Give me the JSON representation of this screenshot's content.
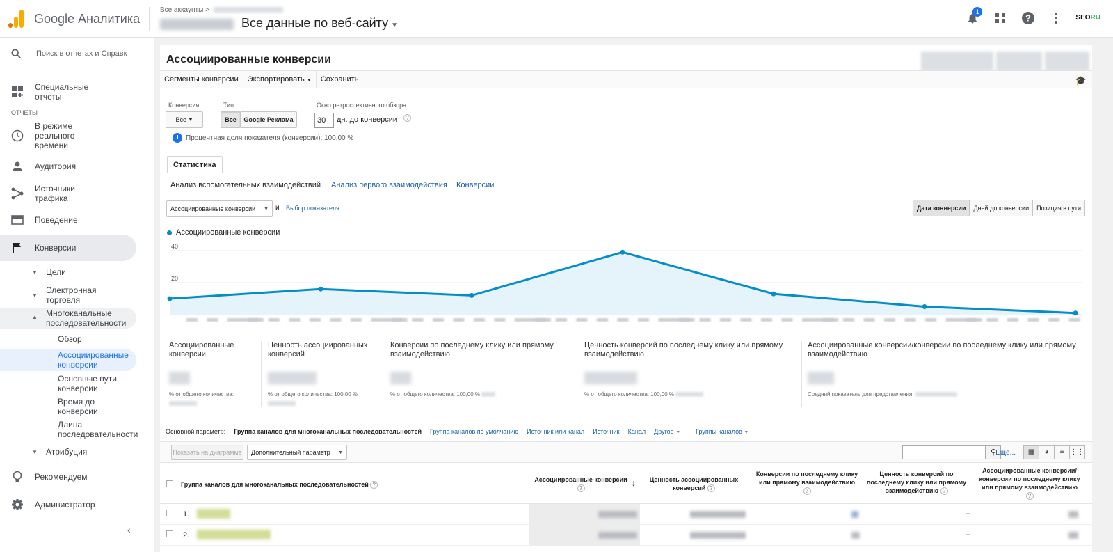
{
  "header": {
    "app_title": "Google Аналитика",
    "breadcrumb": "Все аккаунты >",
    "view_name": "Все данные по веб-сайту",
    "notification_count": "1",
    "brand_logo": "SEO RU",
    "icons": [
      "bell-icon",
      "apps-grid-icon",
      "help-icon",
      "more-vert-icon"
    ],
    "accent_colors": {
      "logo_orange": "#f9ab00",
      "logo_dark_orange": "#e37400"
    }
  },
  "sidebar": {
    "search_placeholder": "Поиск в отчетах и Справк",
    "custom_reports": "Специальные отчеты",
    "section_label": "ОТЧЕТЫ",
    "items": [
      {
        "label": "В режиме реального времени",
        "icon": "clock-icon"
      },
      {
        "label": "Аудитория",
        "icon": "person-icon"
      },
      {
        "label": "Источники трафика",
        "icon": "acquisition-icon"
      },
      {
        "label": "Поведение",
        "icon": "behavior-icon"
      },
      {
        "label": "Конверсии",
        "icon": "flag-icon"
      }
    ],
    "conv_sub": [
      "Цели",
      "Электронная торговля",
      "Многоканальные последовательности"
    ],
    "mcf_sub": [
      "Обзор",
      "Ассоциированные конверсии",
      "Основные пути конверсии",
      "Время до конверсии",
      "Длина последовательности"
    ],
    "attribution": "Атрибуция",
    "discover": "Рекомендуем",
    "admin": "Администратор"
  },
  "report": {
    "title": "Ассоциированные конверсии",
    "toolbar": [
      "Сегменты конверсии",
      "Экспортировать",
      "Сохранить"
    ],
    "conversion_label": "Конверсия:",
    "conversion_value": "Все",
    "type_label": "Тип:",
    "type_options": [
      "Все",
      "Google Реклама"
    ],
    "lookback_label": "Окно ретроспективного обзора:",
    "lookback_days": "30",
    "lookback_suffix": "дн. до конверсии",
    "sample_note": "Процентная доля показателя (конверсии): 100,00 %",
    "tab": "Статистика",
    "subnav": [
      "Анализ вспомогательных взаимодействий",
      "Анализ первого взаимодействия",
      "Конверсии"
    ],
    "metric_select": "Ассоциированные конверсии",
    "and_text": "и",
    "choose_metric": "Выбор показателя",
    "view_toggle": [
      "Дата конверсии",
      "Дней до конверсии",
      "Позиция в пути"
    ],
    "legend": "Ассоциированные конверсии",
    "y_ticks": [
      "40",
      "20"
    ]
  },
  "chart_data": {
    "type": "area",
    "series": [
      {
        "name": "Ассоциированные конверсии",
        "values": [
          10,
          16,
          12,
          39,
          13,
          5,
          1
        ]
      }
    ],
    "ylim": [
      0,
      40
    ],
    "color": "#058dc7"
  },
  "metrics": [
    {
      "title": "Ассоциированные конверсии",
      "pct": "% от общего количества:"
    },
    {
      "title": "Ценность ассоциированных конверсий",
      "pct": "% от общего количества: 100,00 %"
    },
    {
      "title": "Конверсии по последнему клику или прямому взаимодействию",
      "pct": "% от общего количества: 100,00 %"
    },
    {
      "title": "Ценность конверсий по последнему клику или прямому взаимодействию",
      "pct": "% от общего количества: 100,00 %"
    },
    {
      "title": "Ассоциированные конверсии/конверсии по последнему клику или прямому взаимодействию",
      "pct": "Средний показатель для представления:"
    }
  ],
  "dimensions": {
    "label": "Основной параметр:",
    "active": "Группа каналов для многоканальных последовательностей",
    "others": [
      "Группа каналов по умолчанию",
      "Источник или канал",
      "Источник",
      "Канал",
      "Другое",
      "Группы каналов"
    ]
  },
  "table": {
    "plot_rows": "Показать на диаграмме",
    "secondary_dim": "Дополнительный параметр",
    "more": "Ещё...",
    "headers": [
      "Группа каналов для многоканальных последовательностей",
      "Ассоциированные конверсии",
      "Ценность ассоциированных конверсий",
      "Конверсии по последнему клику или прямому взаимодействию",
      "Ценность конверсий по последнему клику или прямому взаимодействию",
      "Ассоциированные конверсии/ конверсии по последнему клику или прямому взаимодействию"
    ],
    "rows": [
      {
        "n": "1.",
        "dash": "–"
      },
      {
        "n": "2.",
        "dash": "–"
      }
    ]
  }
}
